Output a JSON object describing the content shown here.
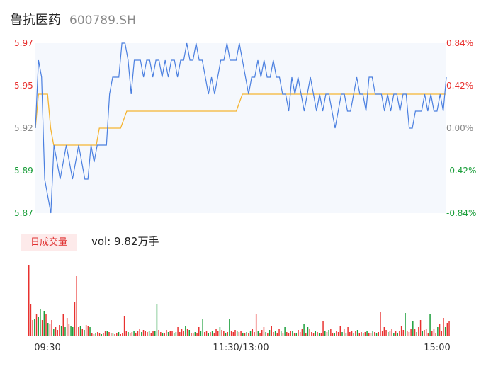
{
  "header": {
    "name": "鲁抗医药",
    "code": "600789.SH"
  },
  "colors": {
    "up": "#e8312f",
    "down": "#1a9e3a",
    "neutral": "#8a8a8a",
    "price_line": "#4a7fe0",
    "avg_line": "#f5b431",
    "area_fill": "#f5f8fd"
  },
  "volume_section": {
    "tab_label": "日成交量",
    "vol_text": "vol: 9.82万手"
  },
  "chart_data": [
    {
      "type": "line",
      "title": "",
      "y_ticks_left": [
        "5.97",
        "5.95",
        "5.92",
        "5.89",
        "5.87"
      ],
      "y_ticks_right": [
        "0.84%",
        "0.42%",
        "0.00%",
        "-0.42%",
        "-0.84%"
      ],
      "ylim": [
        5.87,
        5.97
      ],
      "prev_close": 5.92,
      "series": [
        {
          "values": [
            5.92,
            5.96,
            5.95,
            5.89,
            5.88,
            5.87,
            5.91,
            5.9,
            5.89,
            5.9,
            5.91,
            5.9,
            5.89,
            5.9,
            5.91,
            5.9,
            5.89,
            5.89,
            5.91,
            5.9,
            5.91,
            5.91,
            5.91,
            5.91,
            5.94,
            5.95,
            5.95,
            5.95,
            5.97,
            5.97,
            5.96,
            5.94,
            5.96,
            5.96,
            5.96,
            5.95,
            5.96,
            5.96,
            5.95,
            5.96,
            5.96,
            5.95,
            5.96,
            5.95,
            5.96,
            5.96,
            5.95,
            5.96,
            5.96,
            5.97,
            5.96,
            5.96,
            5.97,
            5.96,
            5.96,
            5.95,
            5.94,
            5.95,
            5.94,
            5.95,
            5.96,
            5.96,
            5.97,
            5.96,
            5.96,
            5.96,
            5.97,
            5.96,
            5.95,
            5.94,
            5.95,
            5.95,
            5.96,
            5.95,
            5.96,
            5.95,
            5.95,
            5.96,
            5.95,
            5.95,
            5.94,
            5.94,
            5.93,
            5.95,
            5.94,
            5.95,
            5.94,
            5.93,
            5.94,
            5.95,
            5.94,
            5.93,
            5.94,
            5.93,
            5.94,
            5.94,
            5.93,
            5.92,
            5.93,
            5.94,
            5.94,
            5.93,
            5.93,
            5.94,
            5.95,
            5.94,
            5.94,
            5.93,
            5.95,
            5.95,
            5.94,
            5.94,
            5.94,
            5.93,
            5.94,
            5.93,
            5.94,
            5.94,
            5.93,
            5.94,
            5.94,
            5.92,
            5.92,
            5.93,
            5.93,
            5.93,
            5.94,
            5.93,
            5.94,
            5.93,
            5.93,
            5.94,
            5.93,
            5.95
          ]
        },
        {
          "values": [
            5.92,
            5.94,
            5.94,
            5.94,
            5.94,
            5.92,
            5.91,
            5.91,
            5.91,
            5.91,
            5.91,
            5.91,
            5.91,
            5.91,
            5.91,
            5.91,
            5.91,
            5.91,
            5.91,
            5.91,
            5.91,
            5.92,
            5.92,
            5.92,
            5.92,
            5.92,
            5.92,
            5.92,
            5.92,
            5.925,
            5.93,
            5.93,
            5.93,
            5.93,
            5.93,
            5.93,
            5.93,
            5.93,
            5.93,
            5.93,
            5.93,
            5.93,
            5.93,
            5.93,
            5.93,
            5.93,
            5.93,
            5.93,
            5.93,
            5.93,
            5.93,
            5.93,
            5.93,
            5.93,
            5.93,
            5.93,
            5.93,
            5.93,
            5.93,
            5.93,
            5.93,
            5.93,
            5.93,
            5.93,
            5.93,
            5.93,
            5.93,
            5.935,
            5.94,
            5.94,
            5.94,
            5.94,
            5.94,
            5.94,
            5.94,
            5.94,
            5.94,
            5.94,
            5.94,
            5.94,
            5.94,
            5.94,
            5.94,
            5.94,
            5.94,
            5.94,
            5.94,
            5.94,
            5.94,
            5.94,
            5.94,
            5.94,
            5.94,
            5.94,
            5.94,
            5.94,
            5.94,
            5.94,
            5.94,
            5.94,
            5.94,
            5.94,
            5.94,
            5.94,
            5.94,
            5.94,
            5.94,
            5.94,
            5.94,
            5.94,
            5.94,
            5.94,
            5.94,
            5.94,
            5.94,
            5.94,
            5.94,
            5.94,
            5.94,
            5.94,
            5.94,
            5.94,
            5.94,
            5.94,
            5.94,
            5.94,
            5.94,
            5.94,
            5.94,
            5.94,
            5.94,
            5.94,
            5.94,
            5.94,
            5.94,
            5.94
          ]
        }
      ]
    },
    {
      "type": "bar",
      "title": "",
      "x_ticks": [
        "09:30",
        "11:30/13:00",
        "15:00"
      ],
      "values": [
        100,
        45,
        22,
        24,
        30,
        26,
        38,
        22,
        35,
        30,
        18,
        16,
        22,
        10,
        12,
        8,
        15,
        14,
        30,
        12,
        25,
        16,
        14,
        12,
        48,
        84,
        12,
        14,
        10,
        8,
        15,
        13,
        12,
        3,
        2,
        4,
        5,
        3,
        2,
        4,
        7,
        6,
        5,
        3,
        4,
        2,
        3,
        5,
        2,
        4,
        28,
        6,
        5,
        3,
        5,
        7,
        4,
        6,
        10,
        5,
        8,
        7,
        5,
        6,
        4,
        7,
        6,
        45,
        8,
        5,
        4,
        3,
        8,
        5,
        6,
        7,
        3,
        5,
        12,
        5,
        10,
        6,
        14,
        10,
        8,
        4,
        3,
        5,
        4,
        12,
        7,
        24,
        5,
        6,
        3,
        5,
        7,
        4,
        9,
        6,
        12,
        8,
        6,
        3,
        5,
        24,
        6,
        5,
        8,
        7,
        5,
        6,
        3,
        4,
        5,
        3,
        6,
        9,
        5,
        30,
        6,
        4,
        8,
        12,
        5,
        4,
        8,
        13,
        5,
        7,
        4,
        10,
        6,
        3,
        12,
        5,
        3,
        7,
        6,
        4,
        3,
        8,
        5,
        9,
        17,
        3,
        12,
        10,
        5,
        4,
        6,
        5,
        4,
        3,
        20,
        6,
        5,
        8,
        10,
        4,
        3,
        6,
        5,
        13,
        5,
        9,
        4,
        12,
        5,
        6,
        4,
        6,
        8,
        4,
        5,
        3,
        5,
        7,
        4,
        4,
        6,
        5,
        4,
        5,
        34,
        6,
        12,
        8,
        5,
        7,
        10,
        4,
        6,
        3,
        6,
        14,
        8,
        32,
        7,
        5,
        9,
        20,
        10,
        5,
        12,
        22,
        6,
        8,
        10,
        4,
        30,
        6,
        10,
        4,
        12,
        16,
        6,
        25,
        12,
        18,
        20
      ],
      "colors": [
        "up",
        "up",
        "up",
        "down",
        "up",
        "down",
        "down",
        "up",
        "down",
        "up",
        "down",
        "up",
        "up",
        "down",
        "up",
        "up",
        "up",
        "down",
        "up",
        "down",
        "up",
        "up",
        "down",
        "down",
        "up",
        "up",
        "up",
        "down",
        "up",
        "down",
        "up",
        "up",
        "down",
        "up",
        "up",
        "down",
        "up",
        "up",
        "down",
        "up",
        "up",
        "down",
        "up",
        "up",
        "down",
        "up",
        "up",
        "down",
        "up",
        "up",
        "up",
        "up",
        "down",
        "up",
        "up",
        "down",
        "up",
        "up",
        "up",
        "down",
        "up",
        "up",
        "up",
        "down",
        "up",
        "up",
        "down",
        "down",
        "up",
        "up",
        "down",
        "up",
        "up",
        "down",
        "up",
        "up",
        "down",
        "down",
        "up",
        "up",
        "up",
        "up",
        "down",
        "up",
        "down",
        "up",
        "up",
        "down",
        "up",
        "up",
        "down",
        "down",
        "up",
        "up",
        "down",
        "up",
        "down",
        "up",
        "up",
        "up",
        "down",
        "up",
        "up",
        "down",
        "up",
        "down",
        "up",
        "up",
        "up",
        "down",
        "up",
        "up",
        "down",
        "up",
        "down",
        "up",
        "down",
        "up",
        "up",
        "up",
        "down",
        "up",
        "up",
        "up",
        "down",
        "up",
        "down",
        "up",
        "up",
        "down",
        "up",
        "up",
        "down",
        "up",
        "down",
        "up",
        "up",
        "up",
        "down",
        "up",
        "down",
        "up",
        "up",
        "up",
        "down",
        "up",
        "down",
        "up",
        "up",
        "up",
        "down",
        "up",
        "down",
        "up",
        "up",
        "down",
        "up",
        "down",
        "up",
        "up",
        "down",
        "up",
        "up",
        "up",
        "down",
        "up",
        "down",
        "up",
        "up",
        "up",
        "down",
        "up",
        "down",
        "up",
        "up",
        "down",
        "up",
        "down",
        "up",
        "up",
        "down",
        "up",
        "down",
        "up",
        "up",
        "up",
        "up",
        "up",
        "down",
        "up",
        "up",
        "down",
        "up",
        "down",
        "up",
        "up",
        "up",
        "down",
        "up",
        "up",
        "up",
        "down",
        "up",
        "down",
        "up",
        "up",
        "down",
        "up",
        "up",
        "up",
        "down",
        "up",
        "up",
        "up",
        "down",
        "up",
        "up",
        "up",
        "down",
        "up",
        "up",
        "up",
        "up",
        "up",
        "up",
        "up"
      ]
    }
  ]
}
